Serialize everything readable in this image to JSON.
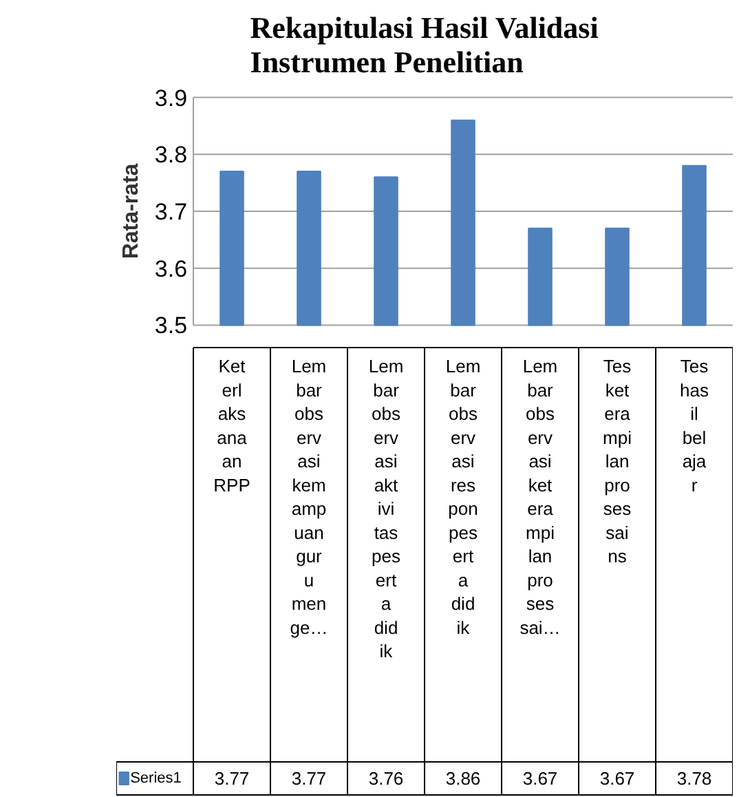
{
  "chart_data": {
    "type": "bar",
    "title": "Rekapitulasi Hasil Validasi Instrumen Penelitian",
    "ylabel": "Rata-rata",
    "categories": [
      "Keterlaksanaan RPP",
      "Lembar observasi kemampuan guru menge…",
      "Lembar observasi aktivitas peserta didik",
      "Lembar observasi respon peserta didik",
      "Lembar observasi keterampilan proses sai…",
      "Tes keterampilan proses sains",
      "Tes hasil belajar"
    ],
    "series": [
      {
        "name": "Series1",
        "color": "#4f81bd",
        "values": [
          3.77,
          3.77,
          3.76,
          3.86,
          3.67,
          3.67,
          3.78
        ]
      }
    ],
    "ylim": [
      3.5,
      3.9
    ],
    "yticks": [
      3.5,
      3.6,
      3.7,
      3.8,
      3.9
    ],
    "grid": "y",
    "data_labels": true,
    "legend": "bottom"
  }
}
